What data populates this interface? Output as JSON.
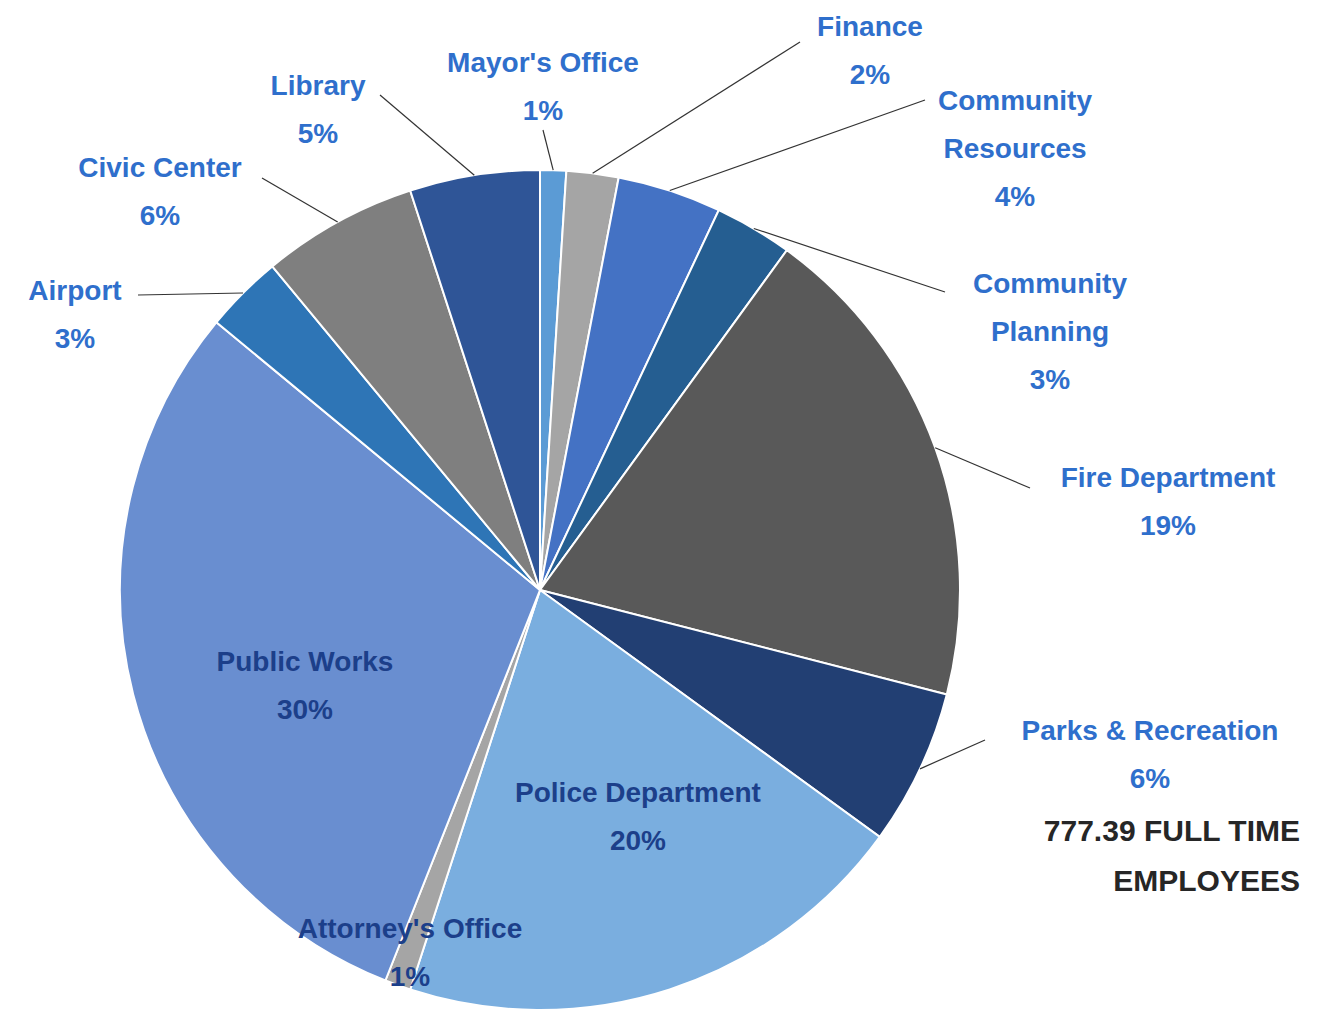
{
  "chart_data": {
    "type": "pie",
    "categories": [
      "Mayor's Office",
      "Finance",
      "Community Resources",
      "Community Planning",
      "Fire Department",
      "Parks & Recreation",
      "Police Department",
      "Attorney's Office",
      "Public Works",
      "Airport",
      "Civic Center",
      "Library"
    ],
    "values": [
      1,
      2,
      4,
      3,
      19,
      6,
      20,
      1,
      30,
      3,
      6,
      5
    ],
    "value_labels": [
      "1%",
      "2%",
      "4%",
      "3%",
      "19%",
      "6%",
      "20%",
      "1%",
      "30%",
      "3%",
      "6%",
      "5%"
    ],
    "colors": [
      "#5b9bd5",
      "#a5a5a5",
      "#4472c4",
      "#255e91",
      "#595959",
      "#223f73",
      "#7aaedf",
      "#a5a5a5",
      "#698ed0",
      "#2e75b6",
      "#7f7f7f",
      "#2f5597"
    ],
    "data_labels": true,
    "annotation": "777.39 FULL TIME EMPLOYEES"
  }
}
